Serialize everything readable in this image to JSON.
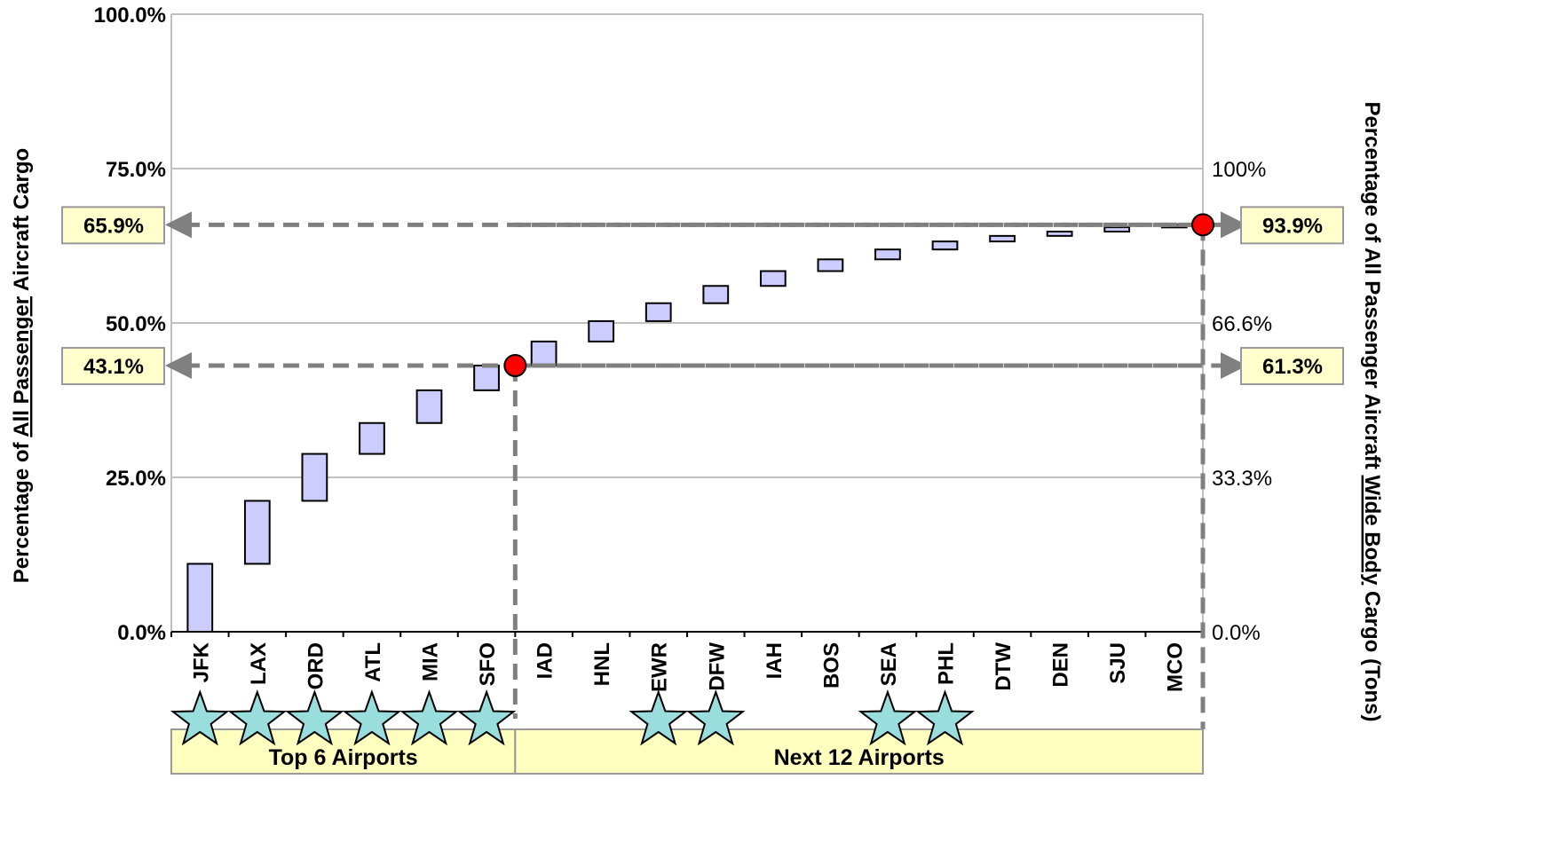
{
  "chart_data": {
    "type": "waterfall",
    "categories": [
      "JFK",
      "LAX",
      "ORD",
      "ATL",
      "MIA",
      "SFO",
      "IAD",
      "HNL",
      "EWR",
      "DFW",
      "IAH",
      "BOS",
      "SEA",
      "PHL",
      "DTW",
      "DEN",
      "SJU",
      "MCO"
    ],
    "ranges": [
      [
        0.0,
        11.0
      ],
      [
        11.0,
        21.2
      ],
      [
        21.2,
        28.8
      ],
      [
        28.8,
        33.8
      ],
      [
        33.8,
        39.1
      ],
      [
        39.1,
        43.1
      ],
      [
        43.1,
        47.0
      ],
      [
        47.0,
        50.3
      ],
      [
        50.3,
        53.2
      ],
      [
        53.2,
        56.0
      ],
      [
        56.0,
        58.4
      ],
      [
        58.4,
        60.3
      ],
      [
        60.3,
        61.9
      ],
      [
        61.9,
        63.2
      ],
      [
        63.2,
        64.1
      ],
      [
        64.1,
        64.8
      ],
      [
        64.8,
        65.5
      ],
      [
        65.5,
        65.9
      ]
    ],
    "starred": [
      "JFK",
      "LAX",
      "ORD",
      "ATL",
      "MIA",
      "SFO",
      "EWR",
      "DFW",
      "SEA",
      "PHL"
    ],
    "ylabel_left_parts": [
      "Percentage  of ",
      "All Passenger",
      " Aircraft Cargo"
    ],
    "ylabel_right_parts": [
      "Percentage of  All Passenger Aircraft ",
      "Wide Body",
      " Cargo (Tons)"
    ],
    "left_axis": {
      "ticks": [
        "0.0%",
        "25.0%",
        "50.0%",
        "75.0%",
        "100.0%"
      ],
      "values": [
        0,
        25,
        50,
        75,
        100
      ],
      "ylim": [
        0,
        100
      ]
    },
    "right_axis": {
      "ticks": [
        "0.0%",
        "33.3%",
        "66.6%",
        "100%"
      ],
      "values_on_left_scale": [
        0,
        25,
        50,
        75
      ]
    },
    "groups": [
      {
        "label": "Top 6 Airports",
        "from": 0,
        "to": 5
      },
      {
        "label": "Next 12 Airports",
        "from": 6,
        "to": 17
      }
    ],
    "markers": [
      {
        "after_category": "SFO",
        "value": 43.1,
        "left_label": "43.1%",
        "right_label": "61.3%"
      },
      {
        "after_category": "MCO",
        "value": 65.9,
        "left_label": "65.9%",
        "right_label": "93.9%"
      }
    ],
    "colors": {
      "bar_fill": "#ccccff",
      "bar_stroke": "#000000",
      "grid": "#c0c0c0",
      "dash": "#808080",
      "marker": "#ff0000",
      "star": "#99dddd",
      "label_box": "#ffffcc",
      "group_box": "#ffffc0"
    }
  }
}
